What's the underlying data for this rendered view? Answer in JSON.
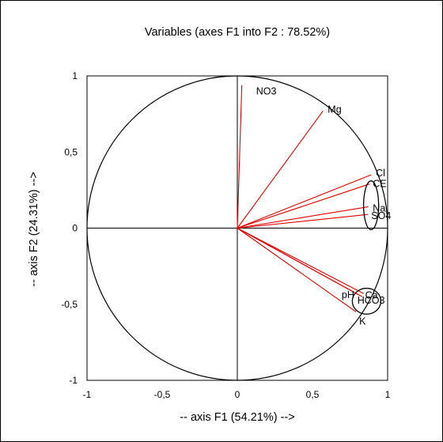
{
  "chart_data": {
    "type": "scatter",
    "title": "Variables (axes F1 into F2 : 78.52%)",
    "xlabel": "-- axis F1 (54.21%) -->",
    "ylabel": "-- axis F2 (24.31%) -->",
    "xlim": [
      -1,
      1
    ],
    "ylim": [
      -1,
      1
    ],
    "x_ticks": [
      "-1",
      "-0,5",
      "0",
      "0,5",
      "1"
    ],
    "y_ticks": [
      "1",
      "0,5",
      "0",
      "-0,5",
      "-1"
    ],
    "correlation_circle": true,
    "vector_color": "#e00000",
    "variables": [
      {
        "name": "NO3",
        "x": 0.03,
        "y": 0.94
      },
      {
        "name": "Mg",
        "x": 0.57,
        "y": 0.77
      },
      {
        "name": "Cl",
        "x": 0.89,
        "y": 0.35
      },
      {
        "name": "CE",
        "x": 0.88,
        "y": 0.29
      },
      {
        "name": "Na",
        "x": 0.87,
        "y": 0.14
      },
      {
        "name": "SO4",
        "x": 0.87,
        "y": 0.09
      },
      {
        "name": "pH",
        "x": 0.81,
        "y": -0.44
      },
      {
        "name": "Ca",
        "x": 0.84,
        "y": -0.43
      },
      {
        "name": "HCO3",
        "x": 0.83,
        "y": -0.45
      },
      {
        "name": "K",
        "x": 0.79,
        "y": -0.55
      }
    ],
    "ellipses": [
      {
        "cx": 0.89,
        "cy": 0.15,
        "rx": 0.05,
        "ry": 0.16
      },
      {
        "cx": 0.86,
        "cy": -0.48,
        "rx": 0.095,
        "ry": 0.085
      }
    ]
  }
}
